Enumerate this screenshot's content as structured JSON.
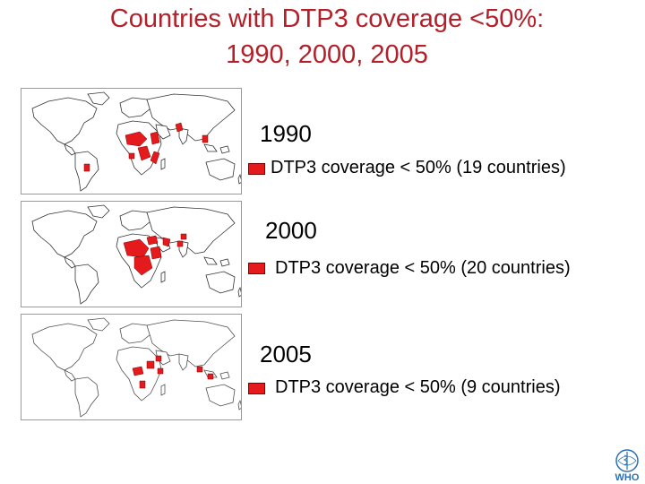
{
  "title": {
    "line1": "Countries with DTP3 coverage <50%:",
    "line2": "1990, 2000, 2005"
  },
  "panels": [
    {
      "year": "1990",
      "legend": "DTP3 coverage < 50% (19 countries)"
    },
    {
      "year": "2000",
      "legend": "DTP3 coverage < 50% (20 countries)"
    },
    {
      "year": "2005",
      "legend": "DTP3 coverage < 50%  (9 countries)"
    }
  ],
  "logo": {
    "text": "WHO"
  },
  "colors": {
    "title": "#b3202a",
    "highlight": "#e41a1c",
    "outline": "#333333"
  }
}
